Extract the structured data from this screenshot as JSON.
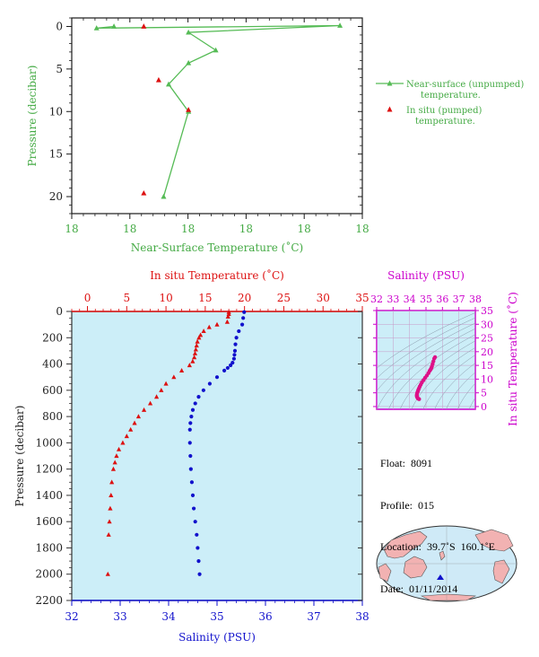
{
  "top_chart": {
    "xlabel": "Near-Surface Temperature (˚C)",
    "ylabel": "Pressure (decibar)",
    "x_ticks": [
      "18",
      "18",
      "18",
      "18",
      "18",
      "18"
    ],
    "y_ticks": [
      "0",
      "5",
      "10",
      "15",
      "20"
    ],
    "legend": [
      {
        "label_line1": "Near-surface (unpumped)",
        "label_line2": "temperature."
      },
      {
        "label_line1": "In situ (pumped)",
        "label_line2": "temperature."
      }
    ],
    "colors": {
      "near_surface": "#55bb55",
      "in_situ": "#dd1111",
      "axis": "#1a1a1a",
      "label": "#44aa44"
    }
  },
  "bottom_chart": {
    "top_axis_label": "In situ Temperature (˚C)",
    "bottom_axis_label": "Salinity (PSU)",
    "ylabel": "Pressure (decibar)",
    "temp_ticks": [
      "0",
      "5",
      "10",
      "15",
      "20",
      "25",
      "30",
      "35"
    ],
    "sal_ticks": [
      "32",
      "33",
      "34",
      "35",
      "36",
      "37",
      "38"
    ],
    "p_ticks": [
      "0",
      "200",
      "400",
      "600",
      "800",
      "1000",
      "1200",
      "1400",
      "1600",
      "1800",
      "2000",
      "2200"
    ],
    "colors": {
      "temperature": "#dd1111",
      "salinity": "#1111cc",
      "panel": "#cceef8"
    }
  },
  "ts_chart": {
    "top_label": "Salinity (PSU)",
    "right_label": "In situ Temperature (˚C)",
    "sal_ticks": [
      "32",
      "33",
      "34",
      "35",
      "36",
      "37",
      "38"
    ],
    "temp_ticks": [
      "0",
      "5",
      "10",
      "15",
      "20",
      "25",
      "30",
      "35"
    ],
    "colors": {
      "axis": "#cc00cc",
      "points": "#dd1188"
    }
  },
  "info": {
    "float_label": "Float:",
    "float_value": "8091",
    "profile_label": "Profile:",
    "profile_value": "015",
    "location_label": "Location:",
    "location_value": "39.7˚S  160.1˚E",
    "date_label": "Date:",
    "date_value": "01/11/2014"
  },
  "chart_data": [
    {
      "type": "line",
      "title": "",
      "xlabel": "Near-Surface Temperature (˚C)",
      "ylabel": "Pressure (decibar)",
      "ylim": [
        22,
        -1
      ],
      "series": [
        {
          "name": "Near-surface (unpumped) temperature.",
          "x": [
            18.05,
            17.98,
            18.96,
            18.35,
            18.46,
            18.35,
            18.27,
            18.35,
            18.35,
            18.25
          ],
          "y": [
            0.0,
            0.2,
            -0.1,
            0.7,
            2.8,
            4.3,
            6.8,
            10.0,
            10.0,
            20.0
          ]
        },
        {
          "name": "In situ (pumped) temperature.",
          "x": [
            18.17,
            18.23,
            18.35,
            18.17
          ],
          "y": [
            0.0,
            6.3,
            9.8,
            19.6
          ]
        }
      ]
    },
    {
      "type": "scatter",
      "title": "",
      "ylabel": "Pressure (decibar)",
      "ylim": [
        2200,
        0
      ],
      "series": [
        {
          "name": "In situ Temperature",
          "x_axis": "In situ Temperature (˚C)",
          "xlim": [
            -2,
            35
          ],
          "x": [
            18.0,
            18.0,
            17.9,
            17.8,
            16.5,
            15.5,
            14.8,
            14.4,
            14.2,
            14.0,
            13.9,
            13.8,
            13.7,
            13.6,
            13.4,
            13.0,
            12.0,
            11.0,
            10.0,
            9.4,
            8.8,
            8.0,
            7.2,
            6.5,
            6.0,
            5.5,
            5.0,
            4.5,
            4.0,
            3.7,
            3.5,
            3.3,
            3.1,
            3.0,
            2.9,
            2.8,
            2.7,
            2.6
          ],
          "p": [
            5,
            20,
            40,
            80,
            100,
            120,
            150,
            180,
            200,
            230,
            260,
            290,
            320,
            350,
            380,
            410,
            450,
            500,
            550,
            600,
            650,
            700,
            750,
            800,
            850,
            900,
            950,
            1000,
            1050,
            1100,
            1150,
            1200,
            1300,
            1400,
            1500,
            1600,
            1700,
            2000
          ]
        },
        {
          "name": "Salinity",
          "x_axis": "Salinity (PSU)",
          "xlim": [
            32,
            38
          ],
          "x": [
            35.56,
            35.54,
            35.52,
            35.45,
            35.4,
            35.38,
            35.37,
            35.36,
            35.35,
            35.32,
            35.28,
            35.22,
            35.15,
            35.0,
            34.85,
            34.72,
            34.62,
            34.55,
            34.5,
            34.47,
            34.45,
            34.44,
            34.44,
            34.45,
            34.46,
            34.48,
            34.5,
            34.52,
            34.55,
            34.58,
            34.6,
            34.62,
            34.64
          ],
          "p": [
            5,
            50,
            100,
            150,
            200,
            250,
            300,
            330,
            360,
            390,
            410,
            430,
            450,
            500,
            550,
            600,
            650,
            700,
            750,
            800,
            850,
            900,
            1000,
            1100,
            1200,
            1300,
            1400,
            1500,
            1600,
            1700,
            1800,
            1900,
            2000
          ]
        }
      ]
    },
    {
      "type": "scatter",
      "title": "",
      "xlabel": "Salinity (PSU)",
      "ylabel": "In situ Temperature (˚C)",
      "xlim": [
        32,
        38
      ],
      "ylim": [
        -1,
        35
      ],
      "series": [
        {
          "name": "T-S",
          "x": [
            35.55,
            35.5,
            35.45,
            35.4,
            35.36,
            35.32,
            35.28,
            35.22,
            35.15,
            35.05,
            34.95,
            34.85,
            34.75,
            34.68,
            34.62,
            34.57,
            34.53,
            34.5,
            34.47,
            34.45,
            34.44,
            34.45,
            34.48,
            34.52,
            34.58
          ],
          "y": [
            18.0,
            17.5,
            16.5,
            15.5,
            14.6,
            14.0,
            13.5,
            13.0,
            12.2,
            11.3,
            10.5,
            9.6,
            8.8,
            8.0,
            7.3,
            6.6,
            6.0,
            5.5,
            5.0,
            4.5,
            4.0,
            3.6,
            3.2,
            2.9,
            2.7
          ]
        }
      ]
    }
  ]
}
